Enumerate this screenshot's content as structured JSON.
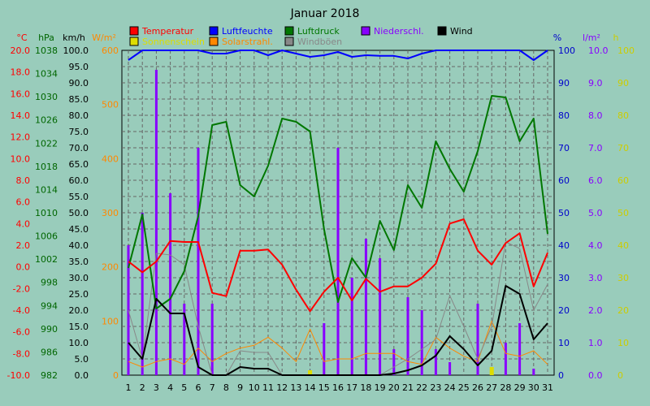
{
  "chart_data": {
    "type": "line",
    "title": "Januar 2018",
    "x_categories": [
      "1",
      "2",
      "3",
      "4",
      "5",
      "6",
      "7",
      "8",
      "9",
      "10",
      "11",
      "12",
      "13",
      "14",
      "15",
      "16",
      "17",
      "18",
      "19",
      "20",
      "21",
      "22",
      "23",
      "24",
      "25",
      "26",
      "27",
      "28",
      "29",
      "30",
      "31"
    ],
    "grid": true,
    "axes": {
      "temp": {
        "label": "°C",
        "color": "#ff0000",
        "min": -10,
        "max": 20,
        "ticks": [
          20.0,
          18.0,
          16.0,
          14.0,
          12.0,
          10.0,
          8.0,
          6.0,
          4.0,
          2.0,
          0.0,
          -2.0,
          -4.0,
          -6.0,
          -8.0,
          -10.0
        ],
        "tick_labels": [
          "20.0",
          "18.0",
          "16.0",
          "14.0",
          "12.0",
          "10.0",
          "8.0",
          "6.0",
          "4.0",
          "2.0",
          "0.0",
          "-2.0",
          "-4.0",
          "-6.0",
          "-8.0",
          "-10.0"
        ]
      },
      "hpa": {
        "label": "hPa",
        "color": "#006600",
        "ticks": [
          "1038",
          "1034",
          "1030",
          "1026",
          "1022",
          "1018",
          "1014",
          "1010",
          "1006",
          "1002",
          "998",
          "994",
          "990",
          "986",
          "982"
        ]
      },
      "kmh": {
        "label": "km/h",
        "color": "#000000",
        "min": 0,
        "max": 100,
        "ticks": [
          "100.0",
          "95.0",
          "90.0",
          "85.0",
          "80.0",
          "75.0",
          "70.0",
          "65.0",
          "60.0",
          "55.0",
          "50.0",
          "45.0",
          "40.0",
          "35.0",
          "30.0",
          "25.0",
          "20.0",
          "15.0",
          "10.0",
          "5.0",
          "0.0"
        ]
      },
      "wm2": {
        "label": "W/m²",
        "color": "#ff8800",
        "min": 0,
        "max": 600,
        "ticks": [
          "600",
          "500",
          "400",
          "300",
          "200",
          "100",
          "0"
        ]
      },
      "pct": {
        "label": "%",
        "color": "#0000cc",
        "min": 0,
        "max": 100,
        "ticks": [
          "100",
          "90",
          "80",
          "70",
          "60",
          "50",
          "40",
          "30",
          "20",
          "10",
          "0"
        ]
      },
      "lm2": {
        "label": "l/m²",
        "color": "#8800ff",
        "min": 0,
        "max": 10,
        "ticks": [
          "10.0",
          "9.0",
          "8.0",
          "7.0",
          "6.0",
          "5.0",
          "4.0",
          "3.0",
          "2.0",
          "1.0",
          "0.0"
        ]
      },
      "h": {
        "label": "h",
        "color": "#cccc00",
        "min": 0,
        "max": 100,
        "ticks": [
          "100",
          "90",
          "80",
          "70",
          "60",
          "50",
          "40",
          "30",
          "20",
          "10",
          "0"
        ]
      }
    },
    "legend": [
      {
        "label": "Temperatur",
        "color": "#ff0000"
      },
      {
        "label": "Luftfeuchte",
        "color": "#0000ff"
      },
      {
        "label": "Luftdruck",
        "color": "#007700"
      },
      {
        "label": "Niederschl.",
        "color": "#8800ff"
      },
      {
        "label": "Wind",
        "color": "#000000"
      },
      {
        "label": "Sonnenschein",
        "color": "#dddd00"
      },
      {
        "label": "Solarstrahl.",
        "color": "#ff8800"
      },
      {
        "label": "Windböen",
        "color": "#888888"
      }
    ],
    "series": [
      {
        "name": "Temperatur",
        "axis": "temp",
        "color": "#ff0000",
        "values": [
          0.5,
          -0.5,
          0.5,
          2.4,
          2.3,
          2.3,
          -2.4,
          -2.7,
          1.5,
          1.5,
          1.6,
          0.2,
          -2.1,
          -4.1,
          -2.3,
          -1.0,
          -3.1,
          -1.1,
          -2.3,
          -1.8,
          -1.8,
          -1.0,
          0.3,
          4.0,
          4.4,
          1.5,
          0.2,
          2.2,
          3.1,
          -1.8,
          1.3
        ]
      },
      {
        "name": "Luftfeuchte",
        "axis": "pct",
        "color": "#0000ff",
        "values": [
          97,
          100,
          100,
          100,
          100,
          100,
          99,
          99,
          100,
          100,
          98.5,
          100,
          99,
          98,
          98.5,
          99.5,
          98,
          98.5,
          98.3,
          98.3,
          97.5,
          99,
          100,
          100,
          100,
          100,
          100,
          100,
          100,
          97,
          100
        ]
      },
      {
        "name": "Luftdruck",
        "axis": "pct",
        "color": "#007700",
        "values": [
          33,
          49.5,
          20.5,
          23.5,
          32,
          49,
          77,
          78,
          58.5,
          55,
          64.5,
          79,
          78,
          75,
          45,
          22.5,
          36,
          30,
          47.5,
          38.5,
          58.5,
          51.5,
          72,
          63.5,
          56.5,
          69,
          86,
          85.5,
          72,
          79,
          43.5
        ]
      },
      {
        "name": "Niederschl.",
        "axis": "lm2",
        "color": "#8800ff",
        "values": [
          4.0,
          5.0,
          9.4,
          5.6,
          2.2,
          7.0,
          2.2,
          0.0,
          0.0,
          0.0,
          0.0,
          0.0,
          0.0,
          0.0,
          1.6,
          7.0,
          3.0,
          4.2,
          3.6,
          0.8,
          2.4,
          2.0,
          0.8,
          0.4,
          0.0,
          2.2,
          0.0,
          1.0,
          1.6,
          0.2,
          0.0
        ]
      },
      {
        "name": "Wind",
        "axis": "kmh",
        "color": "#000000",
        "values": [
          10,
          5,
          23.5,
          19,
          19,
          2.5,
          0,
          0,
          2.5,
          2,
          2,
          0,
          0,
          0,
          0,
          0,
          0,
          0,
          0,
          0.5,
          1.5,
          3,
          6,
          12,
          8,
          3,
          7.5,
          27.5,
          25,
          11,
          16
        ]
      },
      {
        "name": "Windböen",
        "axis": "kmh",
        "color": "#888888",
        "values": [
          20,
          5,
          37.5,
          37,
          34,
          15,
          0,
          0,
          7.5,
          7,
          7,
          0,
          0,
          0,
          0,
          0,
          0,
          0,
          0,
          2.5,
          5,
          8,
          11,
          24.5,
          15,
          5,
          15,
          41,
          39,
          20,
          28
        ]
      },
      {
        "name": "Solarstrahl.",
        "axis": "wm2",
        "color": "#ff8800",
        "values": [
          25,
          15,
          25,
          30,
          20,
          50,
          25,
          40,
          50,
          55,
          70,
          50,
          25,
          85,
          25,
          30,
          30,
          40,
          40,
          40,
          25,
          20,
          70,
          50,
          35,
          25,
          100,
          40,
          35,
          45,
          20
        ]
      },
      {
        "name": "Sonnenschein",
        "axis": "h",
        "color": "#dddd00",
        "values": [
          0,
          0,
          0,
          0,
          0,
          0,
          0,
          0,
          0,
          0,
          0,
          0,
          0,
          1.5,
          0,
          0,
          0,
          0,
          0,
          0,
          0,
          0,
          0,
          0,
          0,
          0,
          2.5,
          0,
          0,
          0,
          0
        ]
      }
    ]
  }
}
